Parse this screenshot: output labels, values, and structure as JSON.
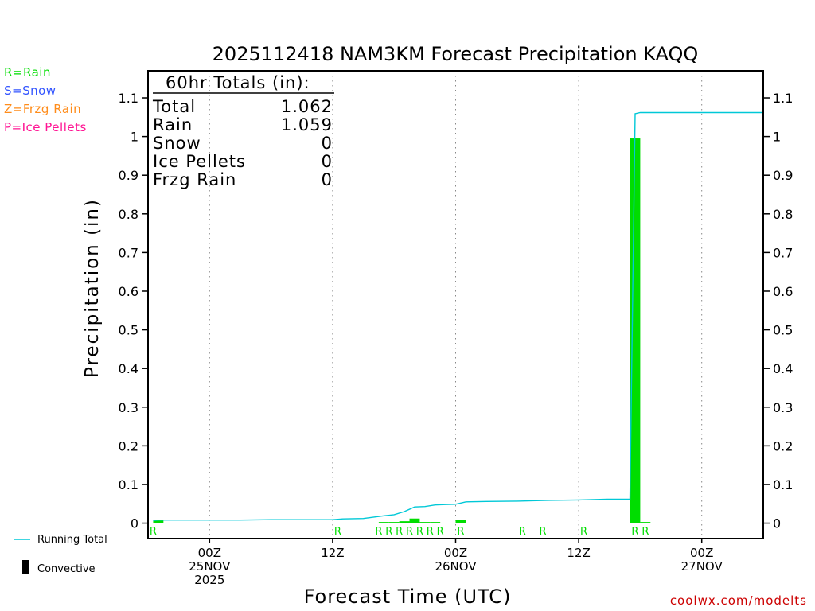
{
  "chart_data": {
    "type": "bar",
    "title": "2025112418 NAM3KM Forecast Precipitation KAQQ",
    "xlabel": "Forecast Time (UTC)",
    "ylabel": "Precipitation (in)",
    "ylim": [
      -0.04,
      1.17
    ],
    "xlim_hours": [
      0,
      60
    ],
    "yticks": [
      0,
      0.1,
      0.2,
      0.3,
      0.4,
      0.5,
      0.6,
      0.7,
      0.8,
      0.9,
      1,
      1.1
    ],
    "ytick_labels": [
      "0",
      "0.1",
      "0.2",
      "0.3",
      "0.4",
      "0.5",
      "0.6",
      "0.7",
      "0.8",
      "0.9",
      "1",
      "1.1"
    ],
    "grid": "dotted vertical at 6-hourly ticks",
    "xticks": [
      {
        "hour": 6,
        "lines": [
          "00Z",
          "25NOV",
          "2025"
        ]
      },
      {
        "hour": 18,
        "lines": [
          "12Z"
        ]
      },
      {
        "hour": 30,
        "lines": [
          "00Z",
          "26NOV"
        ]
      },
      {
        "hour": 42,
        "lines": [
          "12Z"
        ]
      },
      {
        "hour": 54,
        "lines": [
          "00Z",
          "27NOV"
        ]
      }
    ],
    "ptype_legend": [
      {
        "label": "R=Rain",
        "color": "#00dd00"
      },
      {
        "label": "S=Snow",
        "color": "#3355ff"
      },
      {
        "label": "Z=Frzg Rain",
        "color": "#ff8c1a"
      },
      {
        "label": "P=Ice Pellets",
        "color": "#ff1493"
      }
    ],
    "series_legend": [
      {
        "label": "Running Total",
        "color": "#00c8d7"
      },
      {
        "label": "Convective",
        "color": "#000000"
      }
    ],
    "totals": {
      "header": "60hr Totals (in):",
      "rows": [
        {
          "label": "Total",
          "value": "1.062"
        },
        {
          "label": "Rain",
          "value": "1.059"
        },
        {
          "label": "Snow",
          "value": "0"
        },
        {
          "label": "Ice Pellets",
          "value": "0"
        },
        {
          "label": "Frzg Rain",
          "value": "0"
        }
      ]
    },
    "bars": [
      {
        "hour": 1,
        "value": 0.008
      },
      {
        "hour": 23,
        "value": 0.003
      },
      {
        "hour": 24,
        "value": 0.003
      },
      {
        "hour": 25,
        "value": 0.005
      },
      {
        "hour": 26,
        "value": 0.012
      },
      {
        "hour": 27,
        "value": 0.003
      },
      {
        "hour": 28,
        "value": 0.003
      },
      {
        "hour": 30.5,
        "value": 0.008
      },
      {
        "hour": 47.5,
        "value": 0.995
      },
      {
        "hour": 48.5,
        "value": 0.003
      }
    ],
    "running_total": {
      "name": "Running Total",
      "hour": [
        0.5,
        1,
        3,
        6,
        9,
        12,
        15,
        18,
        19,
        21,
        23,
        24,
        25,
        26,
        27,
        28,
        29,
        30,
        31,
        33,
        36,
        39,
        42,
        45,
        47,
        47.5,
        48,
        49,
        52,
        55,
        60
      ],
      "value": [
        0.007,
        0.008,
        0.008,
        0.008,
        0.008,
        0.009,
        0.009,
        0.009,
        0.011,
        0.012,
        0.019,
        0.022,
        0.03,
        0.042,
        0.043,
        0.047,
        0.048,
        0.049,
        0.055,
        0.056,
        0.057,
        0.059,
        0.06,
        0.062,
        0.062,
        1.059,
        1.062,
        1.062,
        1.062,
        1.062,
        1.062
      ]
    },
    "ptype_marks": [
      {
        "hour": 0.5,
        "label": "R"
      },
      {
        "hour": 18.5,
        "label": "R"
      },
      {
        "hour": 22.5,
        "label": "R"
      },
      {
        "hour": 23.5,
        "label": "R"
      },
      {
        "hour": 24.5,
        "label": "R"
      },
      {
        "hour": 25.5,
        "label": "R"
      },
      {
        "hour": 26.5,
        "label": "R"
      },
      {
        "hour": 27.5,
        "label": "R"
      },
      {
        "hour": 28.5,
        "label": "R"
      },
      {
        "hour": 30.5,
        "label": "R"
      },
      {
        "hour": 36.5,
        "label": "R"
      },
      {
        "hour": 38.5,
        "label": "R"
      },
      {
        "hour": 42.5,
        "label": "R"
      },
      {
        "hour": 47.5,
        "label": "R"
      },
      {
        "hour": 48.5,
        "label": "R"
      }
    ],
    "credit": "coolwx.com/modelts",
    "colors": {
      "rain": "#00dd00",
      "running_total": "#00c8d7",
      "axis": "#000000",
      "credit": "#cc0000"
    }
  }
}
